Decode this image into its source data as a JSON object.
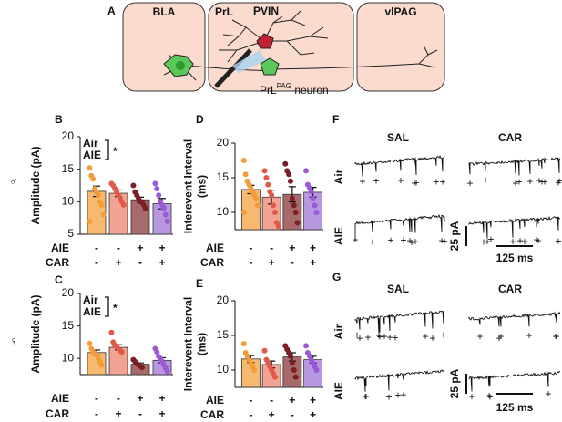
{
  "figure_panels": {
    "a": "A",
    "f": "F",
    "g": "G"
  },
  "diagram": {
    "regions": [
      "BLA",
      "PrL",
      "vlPAG"
    ],
    "pvin": "PVIN",
    "neuron_label": {
      "main": "PrL",
      "sup": "PAG",
      "rest": " neuron"
    }
  },
  "sex": [
    "♂",
    "♀"
  ],
  "traces": {
    "columns": [
      "SAL",
      "CAR"
    ],
    "rows": [
      "Air",
      "AIE"
    ],
    "scale_y": "25 pA",
    "scale_x": "125 ms"
  },
  "chart_data": [
    {
      "type": "bar",
      "panel": "B",
      "ylabel": [
        "Amplitude (pA)"
      ],
      "ylim": [
        5,
        20
      ],
      "yticks": [
        5,
        10,
        15,
        20
      ],
      "rows": [
        {
          "name": "AIE",
          "labels": [
            "-",
            "-",
            "+",
            "+"
          ]
        },
        {
          "name": "CAR",
          "labels": [
            "-",
            "+",
            "-",
            "+"
          ]
        }
      ],
      "annotation": {
        "lines": [
          "Air",
          "AIE"
        ],
        "mark": "*"
      },
      "colors": [
        "#f7b870",
        "#f2a493",
        "#a86a6a",
        "#b797e0"
      ],
      "point_colors": [
        "#f39c3a",
        "#e05a48",
        "#7a1f26",
        "#9b59d6"
      ],
      "values": [
        11.6,
        11.3,
        10.3,
        9.7
      ],
      "errors": [
        0.8,
        0.5,
        0.4,
        0.8
      ],
      "points": [
        [
          15.2,
          14,
          13.5,
          12,
          11.5,
          11,
          10,
          9.5,
          8,
          7
        ],
        [
          12.8,
          12.5,
          12,
          11.5,
          11,
          10.5,
          10,
          9.5
        ],
        [
          12.5,
          11.5,
          11,
          10.5,
          10,
          10,
          9.5,
          9
        ],
        [
          12.8,
          12,
          11,
          10,
          9.5,
          9,
          8,
          7
        ]
      ]
    },
    {
      "type": "bar",
      "panel": "D",
      "ylabel": [
        "Interevent Interval",
        "(ms)"
      ],
      "ylim": [
        7.5,
        20
      ],
      "yticks": [
        10,
        15,
        20
      ],
      "rows": [
        {
          "name": "AIE",
          "labels": [
            "-",
            "-",
            "+",
            "+"
          ]
        },
        {
          "name": "CAR",
          "labels": [
            "-",
            "+",
            "-",
            "+"
          ]
        }
      ],
      "colors": [
        "#f7b870",
        "#f2a493",
        "#a86a6a",
        "#b797e0"
      ],
      "point_colors": [
        "#f39c3a",
        "#e05a48",
        "#7a1f26",
        "#9b59d6"
      ],
      "values": [
        13.3,
        12.2,
        12.6,
        12.9
      ],
      "errors": [
        0.6,
        1.0,
        1.1,
        0.7
      ],
      "points": [
        [
          17.5,
          15.5,
          14.5,
          14,
          13.5,
          13,
          12.5,
          12,
          11,
          10
        ],
        [
          16,
          15,
          14,
          13,
          12.5,
          11,
          10,
          8.5,
          8
        ],
        [
          17,
          16,
          15.5,
          14.5,
          12,
          11,
          10,
          8.5
        ],
        [
          16,
          14,
          13.5,
          13,
          12,
          11,
          10
        ]
      ]
    },
    {
      "type": "bar",
      "panel": "C",
      "ylabel": [
        "Amplitude (pA)"
      ],
      "ylim": [
        7.5,
        20
      ],
      "yticks": [
        10,
        15,
        20
      ],
      "rows": [
        {
          "name": "AIE",
          "labels": [
            "-",
            "-",
            "+",
            "+"
          ]
        },
        {
          "name": "CAR",
          "labels": [
            "-",
            "+",
            "-",
            "+"
          ]
        }
      ],
      "annotation": {
        "lines": [
          "Air",
          "AIE"
        ],
        "mark": "*"
      },
      "colors": [
        "#f7b870",
        "#f2a493",
        "#a86a6a",
        "#b797e0"
      ],
      "point_colors": [
        "#f39c3a",
        "#e05a48",
        "#7a1f26",
        "#9b59d6"
      ],
      "values": [
        10.9,
        11.7,
        9.1,
        9.7
      ],
      "errors": [
        0.4,
        0.4,
        0.2,
        0.4
      ],
      "points": [
        [
          12.3,
          11.5,
          11,
          10.8,
          10.5,
          10,
          9.5,
          9
        ],
        [
          14,
          12.5,
          12,
          11.8,
          11.5,
          11.2,
          11
        ],
        [
          9.8,
          9.5,
          9.2,
          9,
          8.8,
          8.6
        ],
        [
          11.5,
          11,
          10.3,
          10,
          9.5,
          9,
          8.5,
          8
        ]
      ]
    },
    {
      "type": "bar",
      "panel": "E",
      "ylabel": [
        "Interevent Interval",
        "(ms)"
      ],
      "ylim": [
        7.5,
        20
      ],
      "yticks": [
        10,
        15,
        20
      ],
      "rows": [
        {
          "name": "AIE",
          "labels": [
            "-",
            "-",
            "+",
            "+"
          ]
        },
        {
          "name": "CAR",
          "labels": [
            "-",
            "+",
            "-",
            "+"
          ]
        }
      ],
      "colors": [
        "#f7b870",
        "#f2a493",
        "#a86a6a",
        "#b797e0"
      ],
      "point_colors": [
        "#f39c3a",
        "#e05a48",
        "#7a1f26",
        "#9b59d6"
      ],
      "values": [
        11.6,
        10.8,
        11.9,
        11.5
      ],
      "errors": [
        0.5,
        0.5,
        0.6,
        0.5
      ],
      "points": [
        [
          13.8,
          12.5,
          12,
          11.5,
          11,
          10.5,
          10
        ],
        [
          12.8,
          11.5,
          11,
          10.5,
          10,
          9.5,
          9
        ],
        [
          13.5,
          13,
          12.5,
          12,
          11,
          10,
          9
        ],
        [
          13.5,
          12.5,
          12,
          11.5,
          11,
          10.5,
          10
        ]
      ]
    }
  ]
}
